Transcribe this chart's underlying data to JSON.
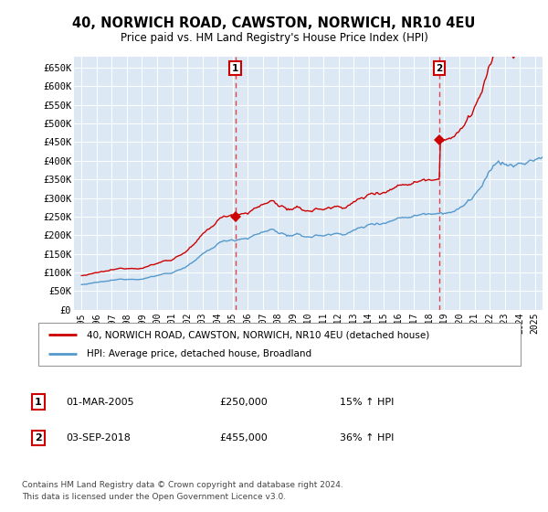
{
  "title1": "40, NORWICH ROAD, CAWSTON, NORWICH, NR10 4EU",
  "title2": "Price paid vs. HM Land Registry's House Price Index (HPI)",
  "plot_bg": "#dce9f5",
  "red_line_label": "40, NORWICH ROAD, CAWSTON, NORWICH, NR10 4EU (detached house)",
  "blue_line_label": "HPI: Average price, detached house, Broadland",
  "annotation1_date": "01-MAR-2005",
  "annotation1_price": "£250,000",
  "annotation1_hpi": "15% ↑ HPI",
  "annotation2_date": "03-SEP-2018",
  "annotation2_price": "£455,000",
  "annotation2_hpi": "36% ↑ HPI",
  "footer": "Contains HM Land Registry data © Crown copyright and database right 2024.\nThis data is licensed under the Open Government Licence v3.0.",
  "vline1_x": 2005.17,
  "vline2_x": 2018.67,
  "sale1_y": 250000,
  "sale2_y": 455000,
  "ylim": [
    0,
    680000
  ],
  "xlim": [
    1994.5,
    2025.5
  ],
  "yticks": [
    0,
    50000,
    100000,
    150000,
    200000,
    250000,
    300000,
    350000,
    400000,
    450000,
    500000,
    550000,
    600000,
    650000
  ],
  "ytick_labels": [
    "£0",
    "£50K",
    "£100K",
    "£150K",
    "£200K",
    "£250K",
    "£300K",
    "£350K",
    "£400K",
    "£450K",
    "£500K",
    "£550K",
    "£600K",
    "£650K"
  ],
  "xticks": [
    1995,
    1996,
    1997,
    1998,
    1999,
    2000,
    2001,
    2002,
    2003,
    2004,
    2005,
    2006,
    2007,
    2008,
    2009,
    2010,
    2011,
    2012,
    2013,
    2014,
    2015,
    2016,
    2017,
    2018,
    2019,
    2020,
    2021,
    2022,
    2023,
    2024,
    2025
  ],
  "red_color": "#cc0000",
  "blue_color": "#5599cc",
  "vline_color": "#dd4444"
}
